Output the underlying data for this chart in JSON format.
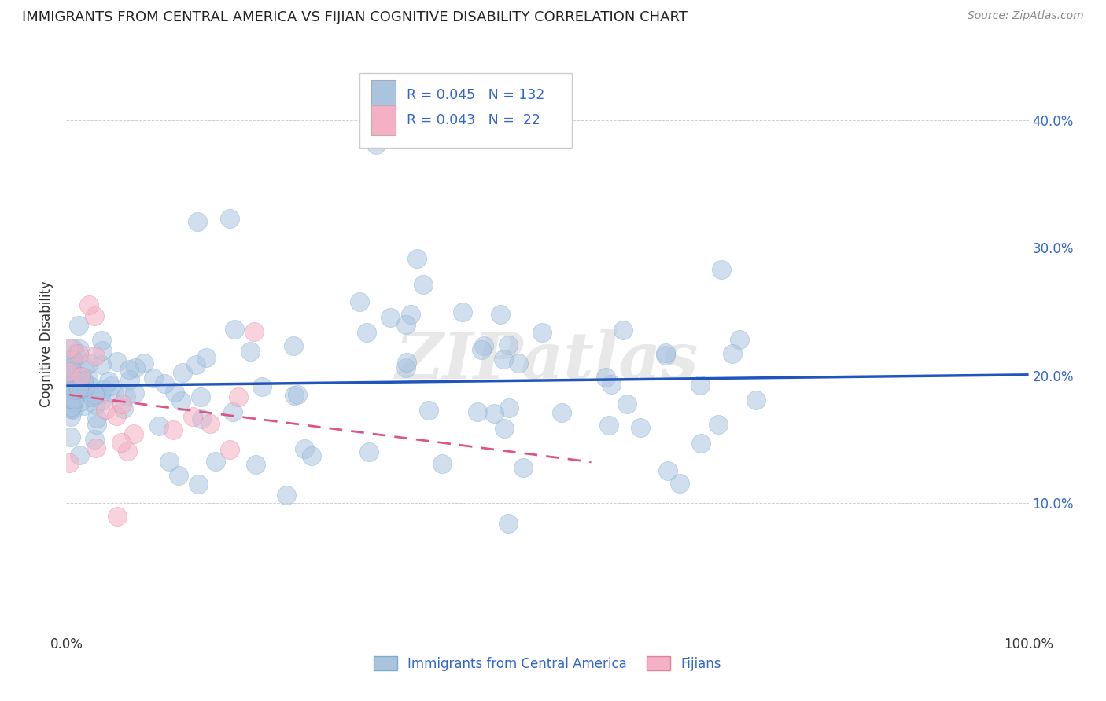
{
  "title": "IMMIGRANTS FROM CENTRAL AMERICA VS FIJIAN COGNITIVE DISABILITY CORRELATION CHART",
  "source": "Source: ZipAtlas.com",
  "ylabel": "Cognitive Disability",
  "ytick_labels": [
    "10.0%",
    "20.0%",
    "30.0%",
    "40.0%"
  ],
  "ytick_values": [
    0.1,
    0.2,
    0.3,
    0.4
  ],
  "xlim": [
    0.0,
    1.0
  ],
  "ylim": [
    0.0,
    0.45
  ],
  "blue_R": 0.045,
  "blue_N": 132,
  "pink_R": 0.043,
  "pink_N": 22,
  "blue_color": "#aac4e0",
  "blue_edge_color": "#7aabcc",
  "blue_line_color": "#2255bb",
  "pink_color": "#f4b0c4",
  "pink_edge_color": "#e080a0",
  "pink_line_color": "#dd5588",
  "legend_label_blue": "Immigrants from Central America",
  "legend_label_pink": "Fijians",
  "watermark": "ZIPatlas",
  "background_color": "#ffffff",
  "grid_color": "#bbbbbb",
  "title_color": "#222222",
  "source_color": "#888888",
  "axis_label_color": "#333333",
  "tick_label_color": "#3366cc"
}
